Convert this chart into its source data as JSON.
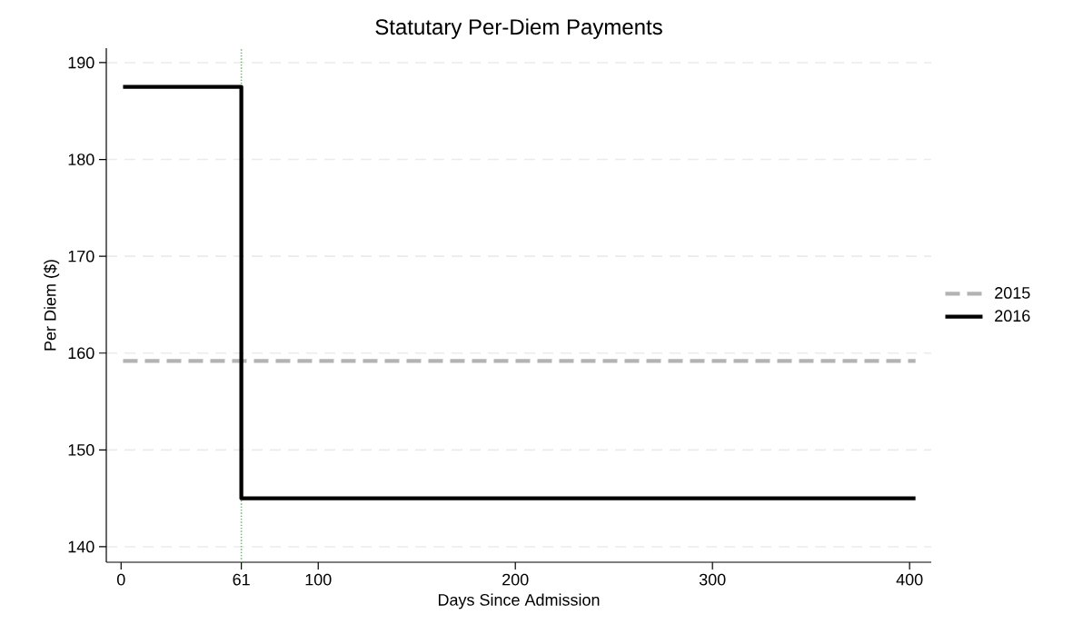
{
  "chart_data": {
    "type": "line",
    "title": "Statutary Per-Diem Payments",
    "xlabel": "Days Since Admission",
    "ylabel": "Per Diem ($)",
    "series": [
      {
        "name": "2015",
        "color": "#b3b3b3",
        "line_style": "dashed",
        "x": [
          1,
          403
        ],
        "values": [
          159.2,
          159.2
        ]
      },
      {
        "name": "2016",
        "type": "step",
        "color": "#000000",
        "line_style": "solid",
        "x": [
          1,
          61,
          403
        ],
        "values": [
          187.5,
          145.0,
          145.0
        ]
      }
    ],
    "xlim": [
      -7.5,
      411
    ],
    "ylim": [
      138.4,
      191.5
    ],
    "xticks": [
      0,
      61,
      100,
      200,
      300,
      400
    ],
    "yticks": [
      140,
      150,
      160,
      170,
      180,
      190
    ],
    "ref_lines": [
      {
        "axis": "x",
        "value": 61,
        "color": "#66bb66",
        "line_style": "dotted"
      }
    ],
    "grid": "y",
    "legend": "right",
    "marker": "none"
  }
}
